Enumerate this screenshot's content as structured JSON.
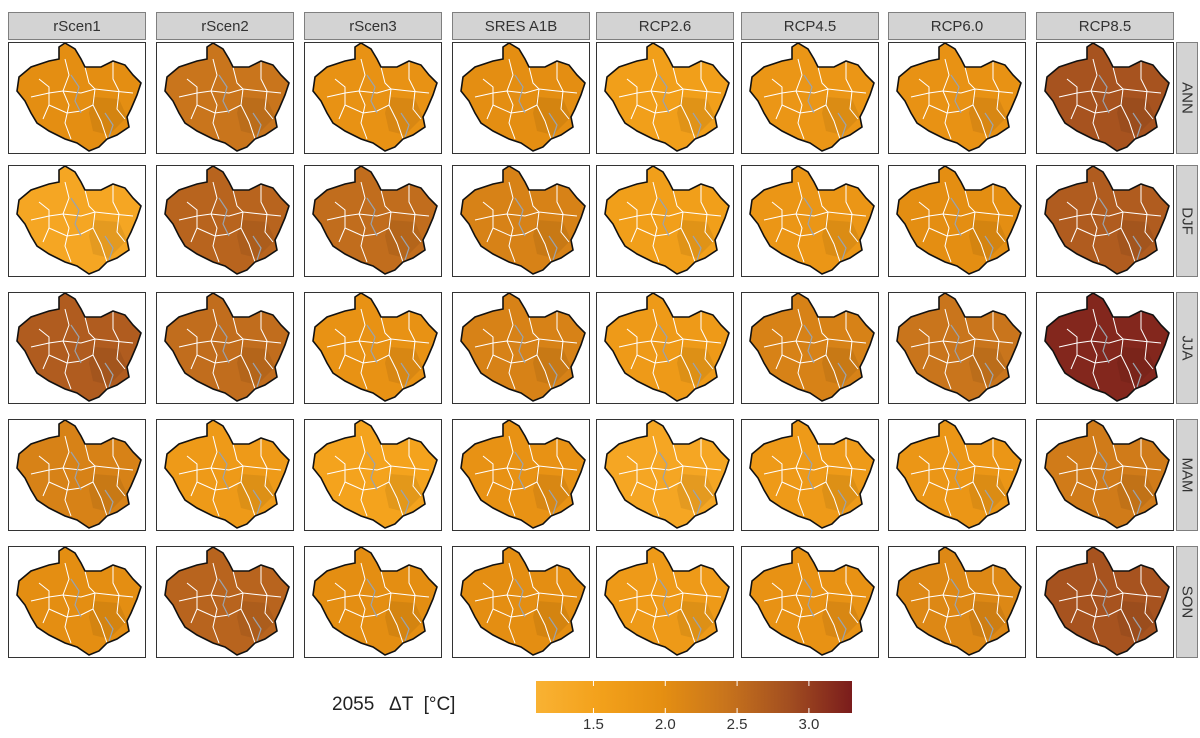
{
  "columns": [
    "rScen1",
    "rScen2",
    "rScen3",
    "SRES A1B",
    "RCP2.6",
    "RCP4.5",
    "RCP6.0",
    "RCP8.5"
  ],
  "rows": [
    "ANN",
    "DJF",
    "JJA",
    "MAM",
    "SON"
  ],
  "legend": {
    "title": "2055   ΔT  [°C]",
    "min": 1.1,
    "max": 3.3,
    "ticks": [
      "1.5",
      "2.0",
      "2.5",
      "3.0"
    ],
    "tick_values": [
      1.5,
      2.0,
      2.5,
      3.0
    ],
    "colors": [
      "#f9b233",
      "#f3a11b",
      "#e58f12",
      "#c8741c",
      "#a24e20",
      "#7a1c1c"
    ]
  },
  "map_data": {
    "variable": "ΔT",
    "units": "°C",
    "year": "2055",
    "values": [
      [
        2.0,
        2.4,
        1.9,
        2.0,
        1.6,
        1.8,
        1.9,
        2.8
      ],
      [
        1.4,
        2.6,
        2.5,
        2.2,
        1.6,
        1.8,
        2.0,
        2.7
      ],
      [
        2.7,
        2.5,
        1.9,
        2.2,
        1.7,
        2.2,
        2.4,
        3.2
      ],
      [
        2.2,
        1.7,
        1.5,
        1.9,
        1.4,
        1.7,
        1.8,
        2.3
      ],
      [
        2.0,
        2.6,
        2.0,
        2.0,
        1.7,
        1.9,
        2.1,
        2.8
      ]
    ]
  }
}
